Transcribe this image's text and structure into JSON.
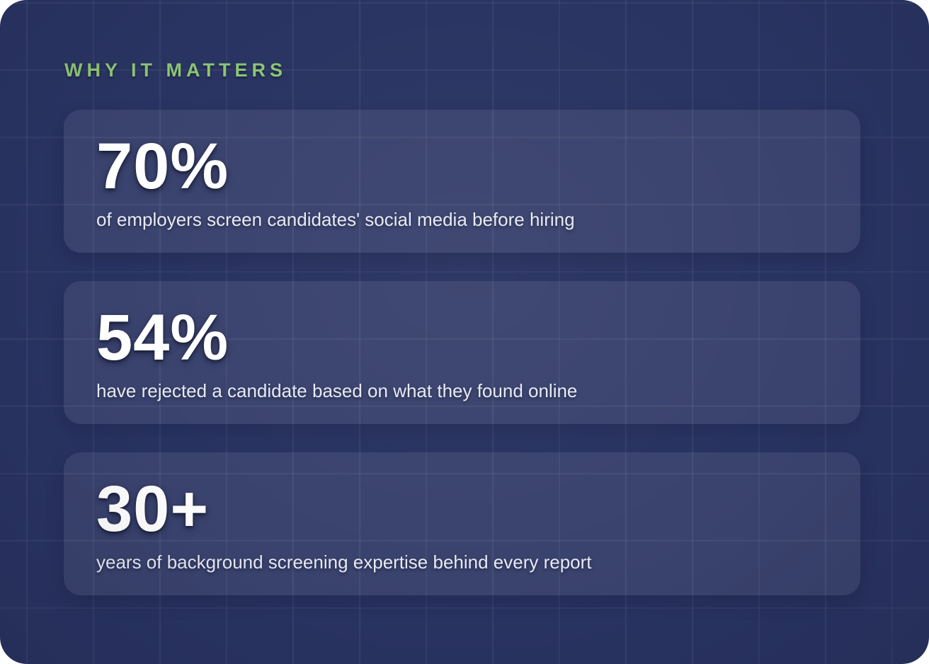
{
  "colors": {
    "page_background": "#ffffff",
    "panel_background": "#2a3462",
    "card_background": "rgba(255,255,255,0.08)",
    "accent_green": "#8cc573",
    "stat_value_text": "#ffffff",
    "description_text": "#e7eaf4"
  },
  "header": {
    "title": "WHY IT MATTERS"
  },
  "stats": [
    {
      "value": "70%",
      "description": "of employers screen candidates' social media before hiring"
    },
    {
      "value": "54%",
      "description": "have rejected a candidate based on what they found online"
    },
    {
      "value": "30+",
      "description": "years of background screening expertise behind every report"
    }
  ]
}
